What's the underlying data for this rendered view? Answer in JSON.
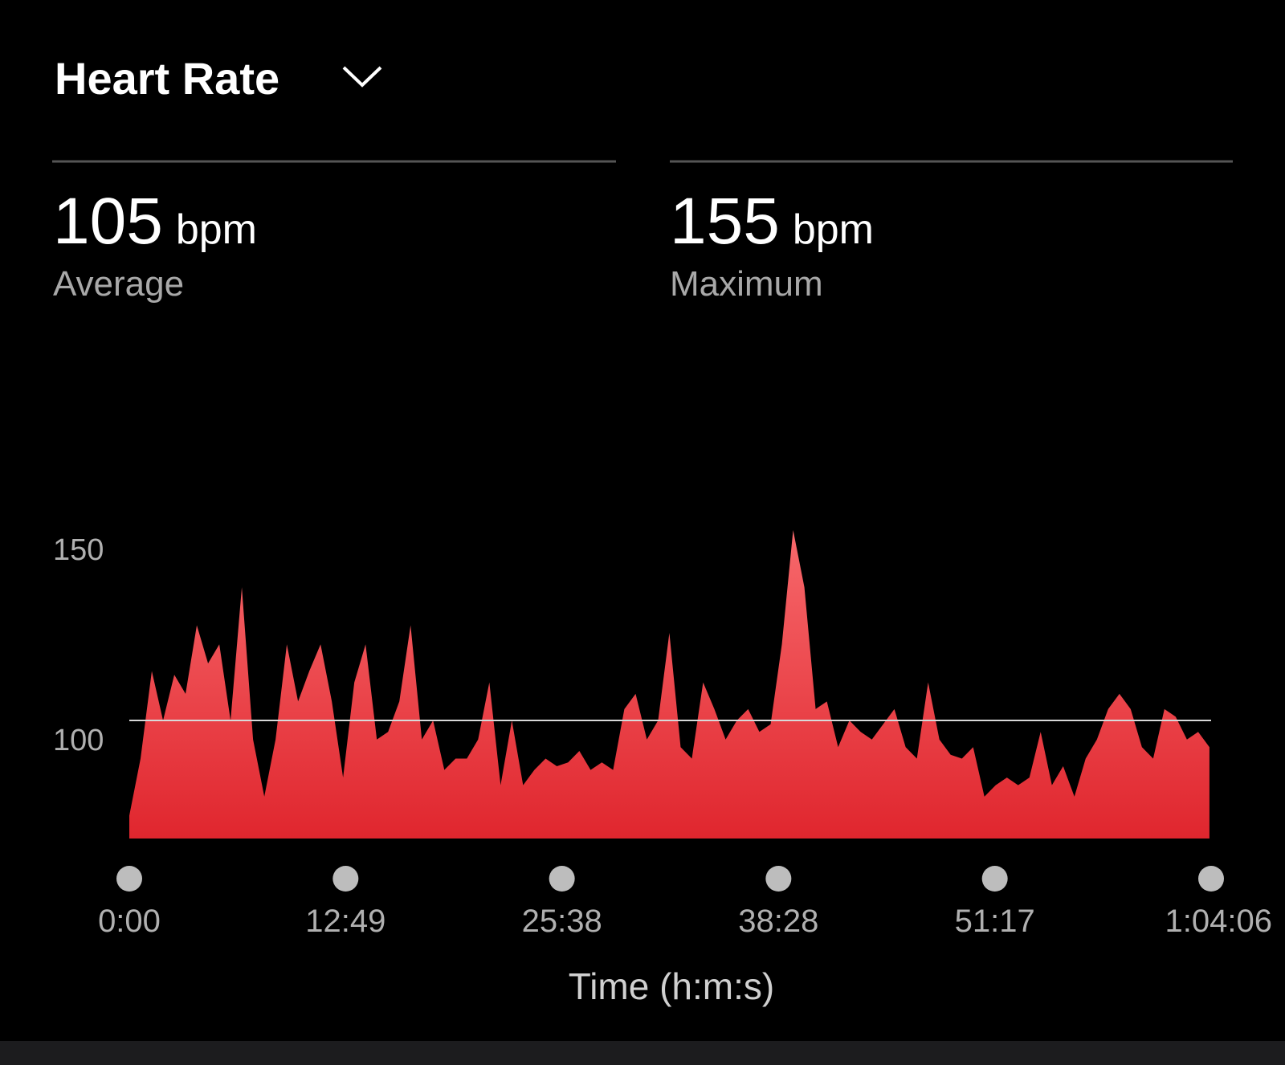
{
  "header": {
    "title": "Heart Rate"
  },
  "stats": [
    {
      "value": 105,
      "unit": "bpm",
      "label": "Average"
    },
    {
      "value": 155,
      "unit": "bpm",
      "label": "Maximum"
    }
  ],
  "chart_data": {
    "type": "area",
    "x_label": "Time (h:m:s)",
    "color": "#e8383e",
    "x": [
      0,
      40,
      80,
      120,
      160,
      200,
      240,
      280,
      320,
      360,
      400,
      440,
      480,
      520,
      560,
      600,
      640,
      680,
      720,
      760,
      800,
      840,
      880,
      920,
      960,
      1000,
      1040,
      1080,
      1120,
      1160,
      1200,
      1240,
      1280,
      1320,
      1360,
      1400,
      1440,
      1480,
      1520,
      1560,
      1600,
      1640,
      1680,
      1720,
      1760,
      1800,
      1840,
      1880,
      1920,
      1960,
      2000,
      2040,
      2080,
      2120,
      2160,
      2200,
      2240,
      2280,
      2320,
      2360,
      2400,
      2440,
      2480,
      2520,
      2560,
      2600,
      2640,
      2680,
      2720,
      2760,
      2800,
      2840,
      2880,
      2920,
      2960,
      3000,
      3040,
      3080,
      3120,
      3160,
      3200,
      3240,
      3280,
      3320,
      3360,
      3400,
      3440,
      3480,
      3520,
      3560,
      3600,
      3640,
      3680,
      3720,
      3760,
      3800,
      3840
    ],
    "values": [
      80,
      95,
      118,
      105,
      117,
      112,
      130,
      120,
      125,
      105,
      140,
      100,
      85,
      100,
      125,
      110,
      118,
      125,
      110,
      90,
      115,
      125,
      100,
      102,
      110,
      130,
      100,
      105,
      92,
      95,
      95,
      100,
      115,
      88,
      105,
      88,
      92,
      95,
      93,
      94,
      97,
      92,
      94,
      92,
      108,
      112,
      100,
      105,
      128,
      98,
      95,
      115,
      108,
      100,
      105,
      108,
      102,
      104,
      125,
      155,
      140,
      108,
      110,
      98,
      105,
      102,
      100,
      104,
      108,
      98,
      95,
      115,
      100,
      96,
      95,
      98,
      85,
      88,
      90,
      88,
      90,
      102,
      88,
      93,
      85,
      95,
      100,
      108,
      112,
      108,
      98,
      95,
      108,
      106,
      100,
      102,
      98
    ],
    "xlim": [
      0,
      3846
    ],
    "xticks": [
      {
        "value": 0,
        "label": "0:00"
      },
      {
        "value": 769,
        "label": "12:49"
      },
      {
        "value": 1538,
        "label": "25:38"
      },
      {
        "value": 2308,
        "label": "38:28"
      },
      {
        "value": 3077,
        "label": "51:17"
      },
      {
        "value": 3846,
        "label": "1:04:06"
      }
    ],
    "ylim": [
      74,
      160
    ],
    "yticks": [
      100,
      150
    ]
  }
}
